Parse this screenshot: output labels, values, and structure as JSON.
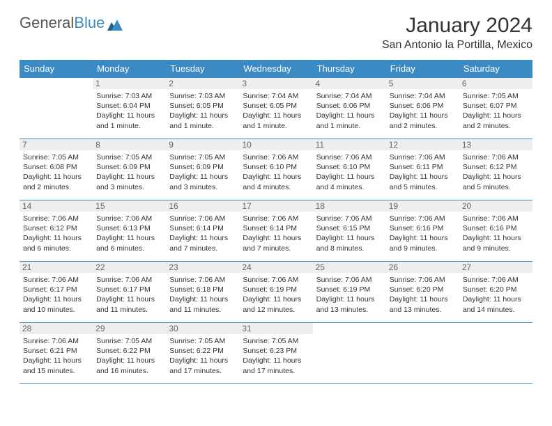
{
  "brand": {
    "part1": "General",
    "part2": "Blue"
  },
  "title": "January 2024",
  "location": "San Antonio la Portilla, Mexico",
  "colors": {
    "accent": "#3b8ac4",
    "daynum_bg": "#eeeeee",
    "text": "#333333",
    "bg": "#ffffff"
  },
  "weekdays": [
    "Sunday",
    "Monday",
    "Tuesday",
    "Wednesday",
    "Thursday",
    "Friday",
    "Saturday"
  ],
  "weeks": [
    [
      null,
      {
        "d": "1",
        "sr": "7:03 AM",
        "ss": "6:04 PM",
        "dl": "11 hours and 1 minute."
      },
      {
        "d": "2",
        "sr": "7:03 AM",
        "ss": "6:05 PM",
        "dl": "11 hours and 1 minute."
      },
      {
        "d": "3",
        "sr": "7:04 AM",
        "ss": "6:05 PM",
        "dl": "11 hours and 1 minute."
      },
      {
        "d": "4",
        "sr": "7:04 AM",
        "ss": "6:06 PM",
        "dl": "11 hours and 1 minute."
      },
      {
        "d": "5",
        "sr": "7:04 AM",
        "ss": "6:06 PM",
        "dl": "11 hours and 2 minutes."
      },
      {
        "d": "6",
        "sr": "7:05 AM",
        "ss": "6:07 PM",
        "dl": "11 hours and 2 minutes."
      }
    ],
    [
      {
        "d": "7",
        "sr": "7:05 AM",
        "ss": "6:08 PM",
        "dl": "11 hours and 2 minutes."
      },
      {
        "d": "8",
        "sr": "7:05 AM",
        "ss": "6:09 PM",
        "dl": "11 hours and 3 minutes."
      },
      {
        "d": "9",
        "sr": "7:05 AM",
        "ss": "6:09 PM",
        "dl": "11 hours and 3 minutes."
      },
      {
        "d": "10",
        "sr": "7:06 AM",
        "ss": "6:10 PM",
        "dl": "11 hours and 4 minutes."
      },
      {
        "d": "11",
        "sr": "7:06 AM",
        "ss": "6:10 PM",
        "dl": "11 hours and 4 minutes."
      },
      {
        "d": "12",
        "sr": "7:06 AM",
        "ss": "6:11 PM",
        "dl": "11 hours and 5 minutes."
      },
      {
        "d": "13",
        "sr": "7:06 AM",
        "ss": "6:12 PM",
        "dl": "11 hours and 5 minutes."
      }
    ],
    [
      {
        "d": "14",
        "sr": "7:06 AM",
        "ss": "6:12 PM",
        "dl": "11 hours and 6 minutes."
      },
      {
        "d": "15",
        "sr": "7:06 AM",
        "ss": "6:13 PM",
        "dl": "11 hours and 6 minutes."
      },
      {
        "d": "16",
        "sr": "7:06 AM",
        "ss": "6:14 PM",
        "dl": "11 hours and 7 minutes."
      },
      {
        "d": "17",
        "sr": "7:06 AM",
        "ss": "6:14 PM",
        "dl": "11 hours and 7 minutes."
      },
      {
        "d": "18",
        "sr": "7:06 AM",
        "ss": "6:15 PM",
        "dl": "11 hours and 8 minutes."
      },
      {
        "d": "19",
        "sr": "7:06 AM",
        "ss": "6:16 PM",
        "dl": "11 hours and 9 minutes."
      },
      {
        "d": "20",
        "sr": "7:06 AM",
        "ss": "6:16 PM",
        "dl": "11 hours and 9 minutes."
      }
    ],
    [
      {
        "d": "21",
        "sr": "7:06 AM",
        "ss": "6:17 PM",
        "dl": "11 hours and 10 minutes."
      },
      {
        "d": "22",
        "sr": "7:06 AM",
        "ss": "6:17 PM",
        "dl": "11 hours and 11 minutes."
      },
      {
        "d": "23",
        "sr": "7:06 AM",
        "ss": "6:18 PM",
        "dl": "11 hours and 11 minutes."
      },
      {
        "d": "24",
        "sr": "7:06 AM",
        "ss": "6:19 PM",
        "dl": "11 hours and 12 minutes."
      },
      {
        "d": "25",
        "sr": "7:06 AM",
        "ss": "6:19 PM",
        "dl": "11 hours and 13 minutes."
      },
      {
        "d": "26",
        "sr": "7:06 AM",
        "ss": "6:20 PM",
        "dl": "11 hours and 13 minutes."
      },
      {
        "d": "27",
        "sr": "7:06 AM",
        "ss": "6:20 PM",
        "dl": "11 hours and 14 minutes."
      }
    ],
    [
      {
        "d": "28",
        "sr": "7:06 AM",
        "ss": "6:21 PM",
        "dl": "11 hours and 15 minutes."
      },
      {
        "d": "29",
        "sr": "7:05 AM",
        "ss": "6:22 PM",
        "dl": "11 hours and 16 minutes."
      },
      {
        "d": "30",
        "sr": "7:05 AM",
        "ss": "6:22 PM",
        "dl": "11 hours and 17 minutes."
      },
      {
        "d": "31",
        "sr": "7:05 AM",
        "ss": "6:23 PM",
        "dl": "11 hours and 17 minutes."
      },
      null,
      null,
      null
    ]
  ],
  "labels": {
    "sunrise": "Sunrise:",
    "sunset": "Sunset:",
    "daylight": "Daylight:"
  }
}
